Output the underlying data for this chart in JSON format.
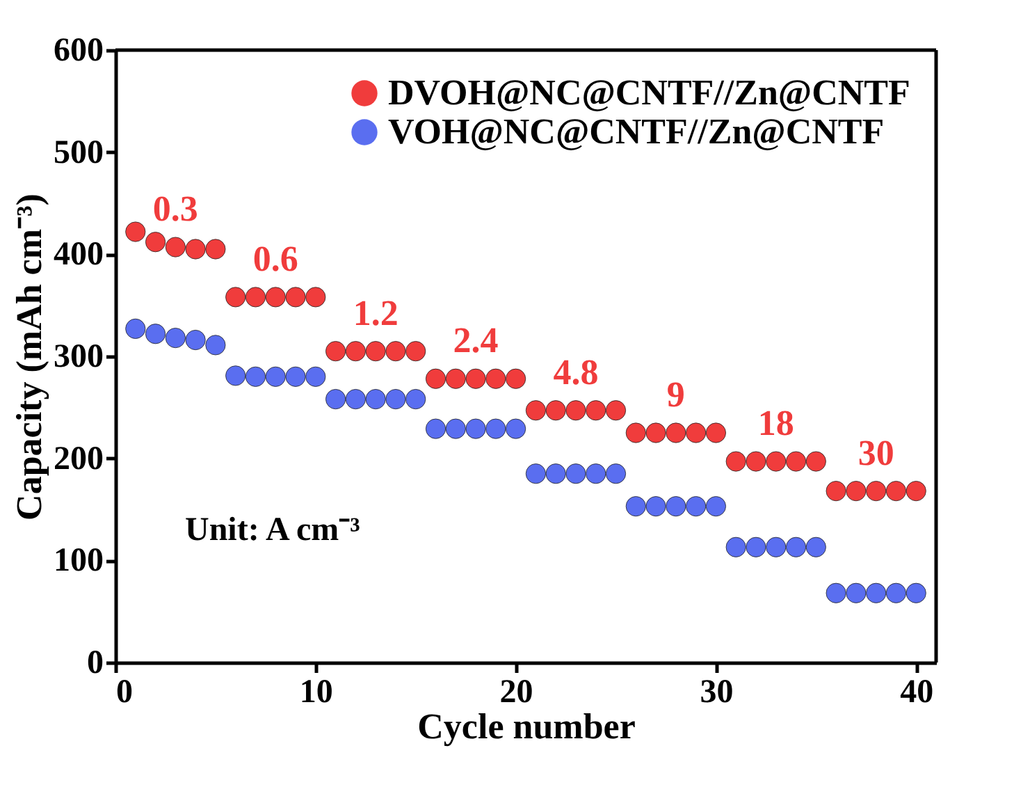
{
  "chart_data": {
    "type": "scatter",
    "xlabel": "Cycle number",
    "ylabel": "Capacity (mAh cm⁻³)",
    "x": [
      1,
      2,
      3,
      4,
      5,
      6,
      7,
      8,
      9,
      10,
      11,
      12,
      13,
      14,
      15,
      16,
      17,
      18,
      19,
      20,
      21,
      22,
      23,
      24,
      25,
      26,
      27,
      28,
      29,
      30,
      31,
      32,
      33,
      34,
      35,
      36,
      37,
      38,
      39,
      40
    ],
    "series": [
      {
        "name": "DVOH@NC@CNTF//Zn@CNTF",
        "color": "#f03c3c",
        "values": [
          422,
          412,
          407,
          405,
          405,
          358,
          358,
          358,
          358,
          358,
          305,
          305,
          305,
          305,
          305,
          278,
          278,
          278,
          278,
          278,
          247,
          247,
          247,
          247,
          247,
          225,
          225,
          225,
          225,
          225,
          197,
          197,
          197,
          197,
          197,
          168,
          168,
          168,
          168,
          168
        ]
      },
      {
        "name": "VOH@NC@CNTF//Zn@CNTF",
        "color": "#5a6ef0",
        "values": [
          327,
          322,
          318,
          316,
          311,
          281,
          280,
          280,
          280,
          280,
          258,
          258,
          258,
          258,
          258,
          229,
          229,
          229,
          229,
          229,
          185,
          185,
          185,
          185,
          185,
          153,
          153,
          153,
          153,
          153,
          113,
          113,
          113,
          113,
          113,
          68,
          68,
          68,
          68,
          68
        ]
      }
    ],
    "xlim": [
      0,
      41
    ],
    "xticks": [
      0,
      10,
      20,
      30,
      40
    ],
    "ylim": [
      0,
      600
    ],
    "yticks": [
      0,
      100,
      200,
      300,
      400,
      500,
      600
    ],
    "annotations": [
      {
        "text": "0.3",
        "x": 3,
        "y": 407
      },
      {
        "text": "0.6",
        "x": 8,
        "y": 358
      },
      {
        "text": "1.2",
        "x": 13,
        "y": 305
      },
      {
        "text": "2.4",
        "x": 18,
        "y": 278
      },
      {
        "text": "4.8",
        "x": 23,
        "y": 247
      },
      {
        "text": "9",
        "x": 28,
        "y": 225
      },
      {
        "text": "18",
        "x": 33,
        "y": 197
      },
      {
        "text": "30",
        "x": 38,
        "y": 168
      },
      "Unit: A cm⁻³"
    ],
    "marker": "circle",
    "grid": false,
    "legend": "top right"
  }
}
